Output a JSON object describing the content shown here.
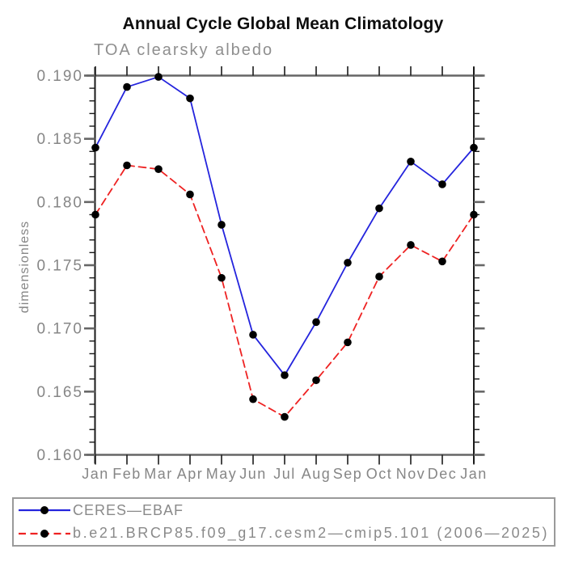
{
  "title": "Annual Cycle Global Mean Climatology",
  "subtitle": "TOA clearsky albedo",
  "chart_data": {
    "type": "line",
    "title": "Annual Cycle Global Mean Climatology",
    "subtitle": "TOA clearsky albedo",
    "xlabel": "",
    "ylabel": "dimensionless",
    "categories": [
      "Jan",
      "Feb",
      "Mar",
      "Apr",
      "May",
      "Jun",
      "Jul",
      "Aug",
      "Sep",
      "Oct",
      "Nov",
      "Dec",
      "Jan"
    ],
    "series": [
      {
        "name": "CERES-EBAF",
        "legend_label": "CERES—EBAF",
        "color": "#2424dd",
        "line_style": "solid",
        "marker": "black-filled-circle",
        "marker_color": "#000000",
        "values": [
          0.1843,
          0.1891,
          0.1899,
          0.1882,
          0.1782,
          0.1695,
          0.1663,
          0.1705,
          0.1752,
          0.1795,
          0.1832,
          0.1814,
          0.1843
        ]
      },
      {
        "name": "b.e21.BRCP85.f09_g17.cesm2-cmip5.101 (2006-2025)",
        "legend_label": "b.e21.BRCP85.f09_g17.cesm2—cmip5.101 (2006—2025)",
        "color": "#ee2222",
        "line_style": "dashed",
        "marker": "black-filled-circle",
        "marker_color": "#000000",
        "values": [
          0.179,
          0.1829,
          0.1826,
          0.1806,
          0.174,
          0.1644,
          0.163,
          0.1659,
          0.1689,
          0.1741,
          0.1766,
          0.1753,
          0.179
        ]
      }
    ],
    "ylim": [
      0.16,
      0.19
    ],
    "ytick_major_interval": 0.005,
    "ytick_minor_interval": 0.001,
    "ytick_labels": [
      "0.160",
      "0.165",
      "0.170",
      "0.175",
      "0.180",
      "0.185",
      "0.190"
    ],
    "grid": false,
    "legend_position": "bottom-left-box",
    "frame_color": "#666666",
    "axis_color": "#1a1a1a",
    "tick_text_color": "#868686"
  }
}
